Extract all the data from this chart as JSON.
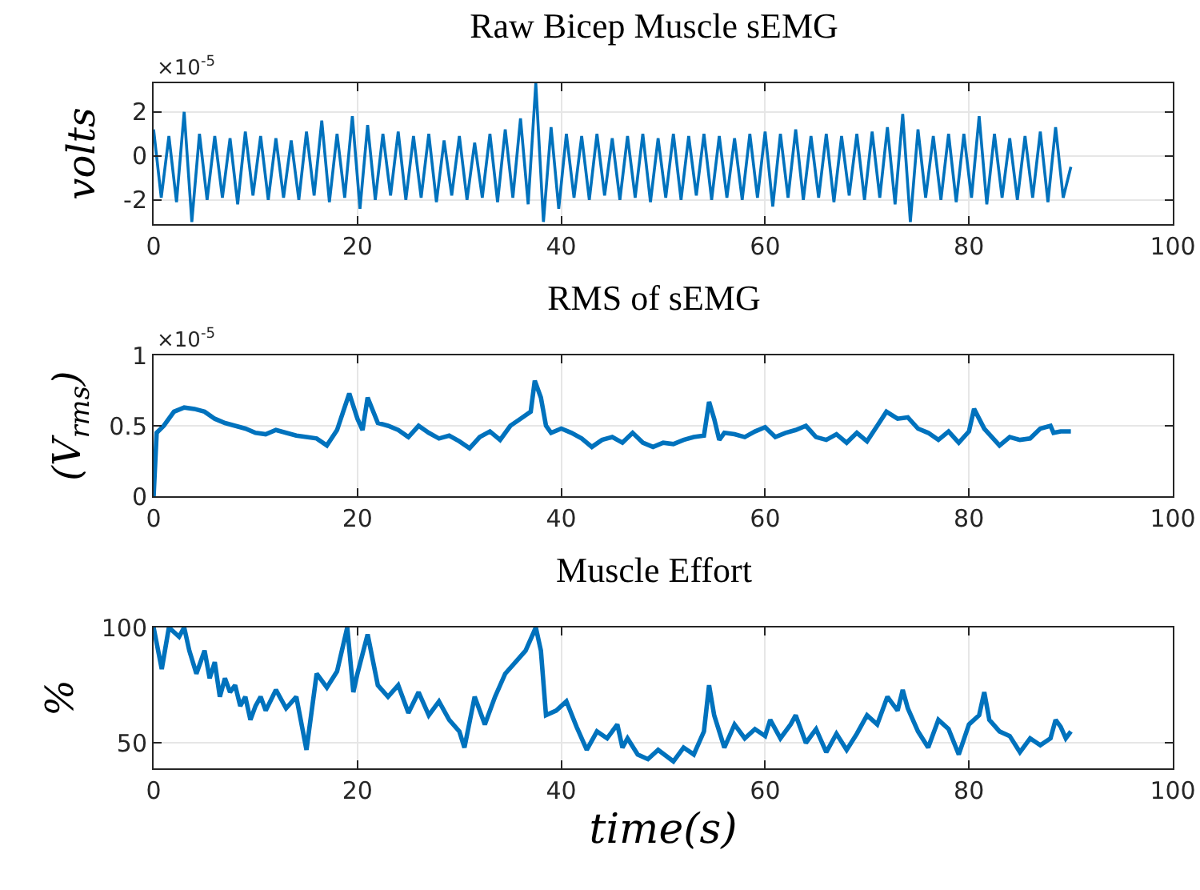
{
  "chart_data": [
    {
      "type": "line",
      "title": "Raw Bicep Muscle sEMG",
      "ylabel": "volts",
      "annotations": [
        "×10$^{-5}$"
      ],
      "x": [
        0,
        0.75,
        1.5,
        2.25,
        3,
        3.75,
        4.5,
        5.25,
        6,
        6.75,
        7.5,
        8.25,
        9,
        9.75,
        10.5,
        11.25,
        12,
        12.75,
        13.5,
        14.25,
        15,
        15.75,
        16.5,
        17.25,
        18,
        18.75,
        19.5,
        20.25,
        21,
        21.75,
        22.5,
        23.25,
        24,
        24.75,
        25.5,
        26.25,
        27,
        27.75,
        28.5,
        29.25,
        30,
        30.75,
        31.5,
        32.25,
        33,
        33.75,
        34.5,
        35.25,
        36,
        36.75,
        37.5,
        38.25,
        39,
        39.75,
        40.5,
        41.25,
        42,
        42.75,
        43.5,
        44.25,
        45,
        45.75,
        46.5,
        47.25,
        48,
        48.75,
        49.5,
        50.25,
        51,
        51.75,
        52.5,
        53.25,
        54,
        54.75,
        55.5,
        56.25,
        57,
        57.75,
        58.5,
        59.25,
        60,
        60.75,
        61.5,
        62.25,
        63,
        63.75,
        64.5,
        65.25,
        66,
        66.75,
        67.5,
        68.25,
        69,
        69.75,
        70.5,
        71.25,
        72,
        72.75,
        73.5,
        74.25,
        75,
        75.75,
        76.5,
        77.25,
        78,
        78.75,
        79.5,
        80.25,
        81,
        81.75,
        82.5,
        83.25,
        84,
        84.75,
        85.5,
        86.25,
        87,
        87.75,
        88.5,
        89.25,
        90
      ],
      "series": [
        {
          "color": "#0072bd",
          "values": [
            1.2,
            -1.9,
            0.9,
            -2.1,
            2.0,
            -3.0,
            1.0,
            -2.0,
            0.9,
            -1.9,
            0.8,
            -2.2,
            1.1,
            -1.8,
            0.9,
            -2.0,
            0.8,
            -1.9,
            0.7,
            -2.0,
            1.1,
            -1.8,
            1.6,
            -2.1,
            1.0,
            -1.9,
            1.8,
            -2.4,
            1.4,
            -2.0,
            1.0,
            -1.8,
            1.1,
            -2.0,
            0.9,
            -1.9,
            1.0,
            -2.1,
            0.7,
            -1.8,
            0.9,
            -2.0,
            0.6,
            -1.9,
            1.0,
            -2.1,
            1.2,
            -1.9,
            1.7,
            -2.2,
            3.3,
            -3.0,
            1.3,
            -2.4,
            1.0,
            -1.9,
            0.9,
            -2.0,
            1.0,
            -1.8,
            0.8,
            -2.0,
            0.9,
            -1.9,
            1.0,
            -2.1,
            0.8,
            -1.9,
            1.0,
            -2.0,
            0.9,
            -1.8,
            1.0,
            -2.0,
            0.9,
            -1.9,
            0.8,
            -2.0,
            1.0,
            -1.9,
            1.1,
            -2.3,
            1.0,
            -1.9,
            1.2,
            -2.0,
            0.9,
            -1.9,
            1.0,
            -2.1,
            0.9,
            -1.8,
            1.0,
            -2.0,
            1.1,
            -1.9,
            1.3,
            -2.2,
            1.9,
            -3.0,
            1.2,
            -1.9,
            0.9,
            -2.0,
            1.0,
            -2.1,
            1.0,
            -1.9,
            1.8,
            -2.2,
            1.0,
            -1.9,
            0.8,
            -2.0,
            0.9,
            -1.9,
            1.1,
            -2.1,
            1.3,
            -1.9,
            -0.5
          ]
        }
      ],
      "xlim": [
        0,
        100
      ],
      "xticks": [
        0,
        20,
        40,
        60,
        80,
        100
      ],
      "ylim": [
        -3.1,
        3.3
      ],
      "yticks": [
        -2,
        0,
        2
      ],
      "grid": true
    },
    {
      "type": "line",
      "title": "RMS of sEMG",
      "ylabel": "(V$_{rms}$)",
      "annotations": [
        "×10$^{-5}$"
      ],
      "x": [
        0,
        0.3,
        1,
        2,
        3,
        4,
        5,
        6,
        7,
        8,
        9,
        10,
        11,
        12,
        13,
        14,
        15,
        16,
        17,
        18,
        19.2,
        20,
        20.5,
        21,
        22,
        23,
        24,
        25,
        26,
        27,
        28,
        29,
        30,
        31,
        32,
        33,
        34,
        35,
        36,
        37,
        37.4,
        38,
        38.5,
        39,
        40,
        41,
        42,
        43,
        44,
        45,
        46,
        47,
        48,
        49,
        50,
        51,
        52,
        53,
        54,
        54.5,
        55,
        55.5,
        56,
        57,
        58,
        59,
        60,
        61,
        62,
        63,
        64,
        65,
        66,
        67,
        68,
        69,
        70,
        71,
        71.9,
        73,
        74,
        75,
        76,
        77,
        78,
        79,
        80,
        80.5,
        81.5,
        82,
        83,
        84,
        85,
        86,
        87,
        88,
        88.3,
        89,
        90
      ],
      "series": [
        {
          "color": "#0072bd",
          "values": [
            0,
            0.45,
            0.5,
            0.6,
            0.63,
            0.62,
            0.6,
            0.55,
            0.52,
            0.5,
            0.48,
            0.45,
            0.44,
            0.47,
            0.45,
            0.43,
            0.42,
            0.41,
            0.36,
            0.47,
            0.73,
            0.55,
            0.47,
            0.7,
            0.52,
            0.5,
            0.47,
            0.42,
            0.5,
            0.45,
            0.41,
            0.43,
            0.39,
            0.34,
            0.42,
            0.46,
            0.4,
            0.5,
            0.55,
            0.6,
            0.82,
            0.7,
            0.5,
            0.45,
            0.48,
            0.45,
            0.41,
            0.35,
            0.4,
            0.42,
            0.38,
            0.45,
            0.38,
            0.35,
            0.38,
            0.37,
            0.4,
            0.42,
            0.43,
            0.67,
            0.55,
            0.4,
            0.45,
            0.44,
            0.42,
            0.46,
            0.49,
            0.42,
            0.45,
            0.47,
            0.5,
            0.42,
            0.4,
            0.44,
            0.38,
            0.45,
            0.39,
            0.5,
            0.6,
            0.55,
            0.56,
            0.48,
            0.45,
            0.4,
            0.46,
            0.38,
            0.46,
            0.62,
            0.48,
            0.44,
            0.36,
            0.42,
            0.4,
            0.41,
            0.48,
            0.5,
            0.45,
            0.46,
            0.46
          ]
        }
      ],
      "xlim": [
        0,
        100
      ],
      "xticks": [
        0,
        20,
        40,
        60,
        80,
        100
      ],
      "ylim": [
        0,
        1
      ],
      "yticks": [
        0,
        0.5,
        1
      ],
      "grid": true
    },
    {
      "type": "line",
      "title": "Muscle Effort",
      "ylabel": "%",
      "xlabel": "time(s)",
      "x": [
        0,
        0.8,
        1.5,
        2.5,
        3,
        3.5,
        4.2,
        5,
        5.5,
        6,
        6.5,
        7,
        7.5,
        8,
        8.5,
        9,
        9.5,
        10,
        10.5,
        11,
        12,
        13,
        14,
        15,
        16,
        17,
        18,
        19,
        19.6,
        20,
        21,
        22,
        23,
        24,
        25,
        26,
        27,
        28,
        29,
        30,
        30.5,
        31.5,
        32.5,
        33.5,
        34.5,
        35.5,
        36.5,
        37.5,
        38,
        38.5,
        39.5,
        40.5,
        41.5,
        42.5,
        43.5,
        44.5,
        45.5,
        46,
        46.5,
        47.5,
        48.5,
        49.5,
        51,
        52,
        53,
        54,
        54.5,
        55,
        56,
        57,
        58,
        59,
        60,
        60.5,
        61.5,
        62.5,
        63,
        64,
        65,
        66,
        67,
        68,
        69,
        70,
        71,
        72,
        73,
        73.5,
        74,
        75,
        76,
        77,
        78,
        79,
        80,
        81,
        81.5,
        82,
        83,
        84,
        85,
        86,
        87,
        88,
        88.5,
        89,
        89.5,
        90
      ],
      "series": [
        {
          "color": "#0072bd",
          "values": [
            100,
            82,
            100,
            96,
            100,
            90,
            80,
            90,
            78,
            85,
            70,
            78,
            72,
            75,
            66,
            70,
            60,
            66,
            70,
            64,
            73,
            65,
            70,
            47,
            80,
            74,
            81,
            100,
            72,
            80,
            97,
            75,
            70,
            75,
            63,
            72,
            62,
            68,
            60,
            55,
            48,
            70,
            58,
            70,
            80,
            85,
            90,
            100,
            90,
            62,
            64,
            68,
            57,
            47,
            55,
            52,
            58,
            48,
            52,
            45,
            43,
            47,
            42,
            48,
            45,
            55,
            75,
            62,
            48,
            58,
            52,
            56,
            53,
            60,
            52,
            58,
            62,
            50,
            56,
            46,
            54,
            47,
            54,
            62,
            58,
            70,
            64,
            73,
            65,
            55,
            48,
            60,
            56,
            45,
            58,
            62,
            72,
            60,
            55,
            53,
            46,
            52,
            49,
            52,
            60,
            57,
            52,
            55
          ]
        }
      ],
      "xlim": [
        0,
        100
      ],
      "xticks": [
        0,
        20,
        40,
        60,
        80,
        100
      ],
      "ylim": [
        39,
        100
      ],
      "yticks": [
        50,
        100
      ],
      "grid": true
    }
  ]
}
